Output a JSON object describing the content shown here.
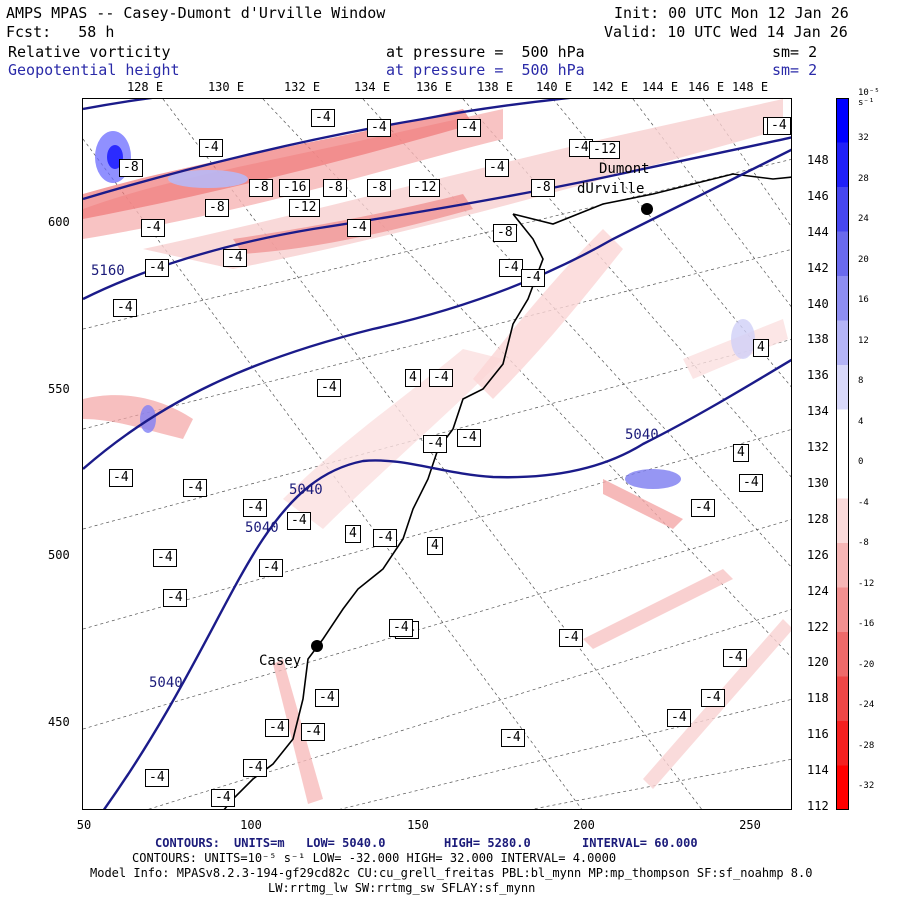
{
  "header": {
    "model_title": "AMPS MPAS -- Casey-Dumont d'Urville Window",
    "init": "Init: 00 UTC Mon 12 Jan 26",
    "fcst": "Fcst:   58 h",
    "valid": "Valid: 10 UTC Wed 14 Jan 26",
    "field1_name": "Relative vorticity",
    "field1_level": "at pressure =  500 hPa",
    "field1_sm": "sm= 2",
    "field2_name": "Geopotential height",
    "field2_level": "at pressure =  500 hPa",
    "field2_sm": "sm= 2"
  },
  "axes": {
    "x_ticks": [
      "50",
      "100",
      "150",
      "200",
      "250"
    ],
    "y_ticks": [
      "450",
      "500",
      "550",
      "600"
    ],
    "lon_labels": [
      "128 E",
      "130 E",
      "132 E",
      "134 E",
      "136 E",
      "138 E",
      "140 E",
      "142 E",
      "144 E",
      "146 E",
      "148 E"
    ],
    "lat_labels": [
      "148 E",
      "146 E",
      "144 E",
      "142 E",
      "140 E",
      "138 E",
      "136 E",
      "134 E",
      "132 E",
      "130 E",
      "128 E",
      "126 E",
      "124 E",
      "122 E",
      "120 E",
      "118 E",
      "116 E",
      "114 E",
      "112 E"
    ]
  },
  "colorbar": {
    "unit_label": "10⁻⁵ s⁻¹",
    "labels": [
      "32",
      "28",
      "24",
      "20",
      "16",
      "12",
      "8",
      "4",
      "0",
      "-4",
      "-8",
      "-12",
      "-16",
      "-20",
      "-24",
      "-28",
      "-32"
    ],
    "colors": {
      "pos_strong": "#0000ff",
      "neg_strong": "#ff0000"
    }
  },
  "stations": [
    {
      "name": "Dumont",
      "name2": "dUrville"
    },
    {
      "name": "Casey"
    }
  ],
  "height_contour_labels": [
    "5160",
    "5040",
    "5040",
    "5040",
    "5040",
    "5040"
  ],
  "vorticity_labels": [
    "-4",
    "-4",
    "-4",
    "-4",
    "-4",
    "-12",
    "-8",
    "-8",
    "-16",
    "-8",
    "-12",
    "-8",
    "-8",
    "-8",
    "-12",
    "-4",
    "-8",
    "-4",
    "-4",
    "-4",
    "-4",
    "-4",
    "-4",
    "-4",
    "-4",
    "-4",
    "4",
    "-4",
    "-4",
    "-4",
    "-4",
    "4",
    "-4",
    "-4",
    "-4",
    "-4",
    "-4",
    "-4",
    "-4",
    "4",
    "-4",
    "-4",
    "4",
    "-4",
    "-4",
    "-4",
    "-4",
    "-4",
    "-4",
    "-4",
    "-4",
    "-4",
    "-4",
    "-4",
    "-4",
    "-4",
    "-4",
    "4"
  ],
  "footer": {
    "contours1_label": "CONTOURS:",
    "contours1_units": "UNITS=m",
    "contours1_low": "LOW=  5040.0",
    "contours1_high": "HIGH=  5280.0",
    "contours1_interval": "INTERVAL=  60.000",
    "contours2": "CONTOURS:  UNITS=10⁻⁵ s⁻¹   LOW= -32.000      HIGH=  32.000      INTERVAL=   4.0000",
    "model_info": "Model Info: MPASv8.2.3-194-gf29cd82c CU:cu_grell_freitas PBL:bl_mynn MP:mp_thompson SF:sf_noahmp 8.0",
    "model_info2": "LW:rrtmg_lw SW:rrtmg_sw SFLAY:sf_mynn"
  }
}
